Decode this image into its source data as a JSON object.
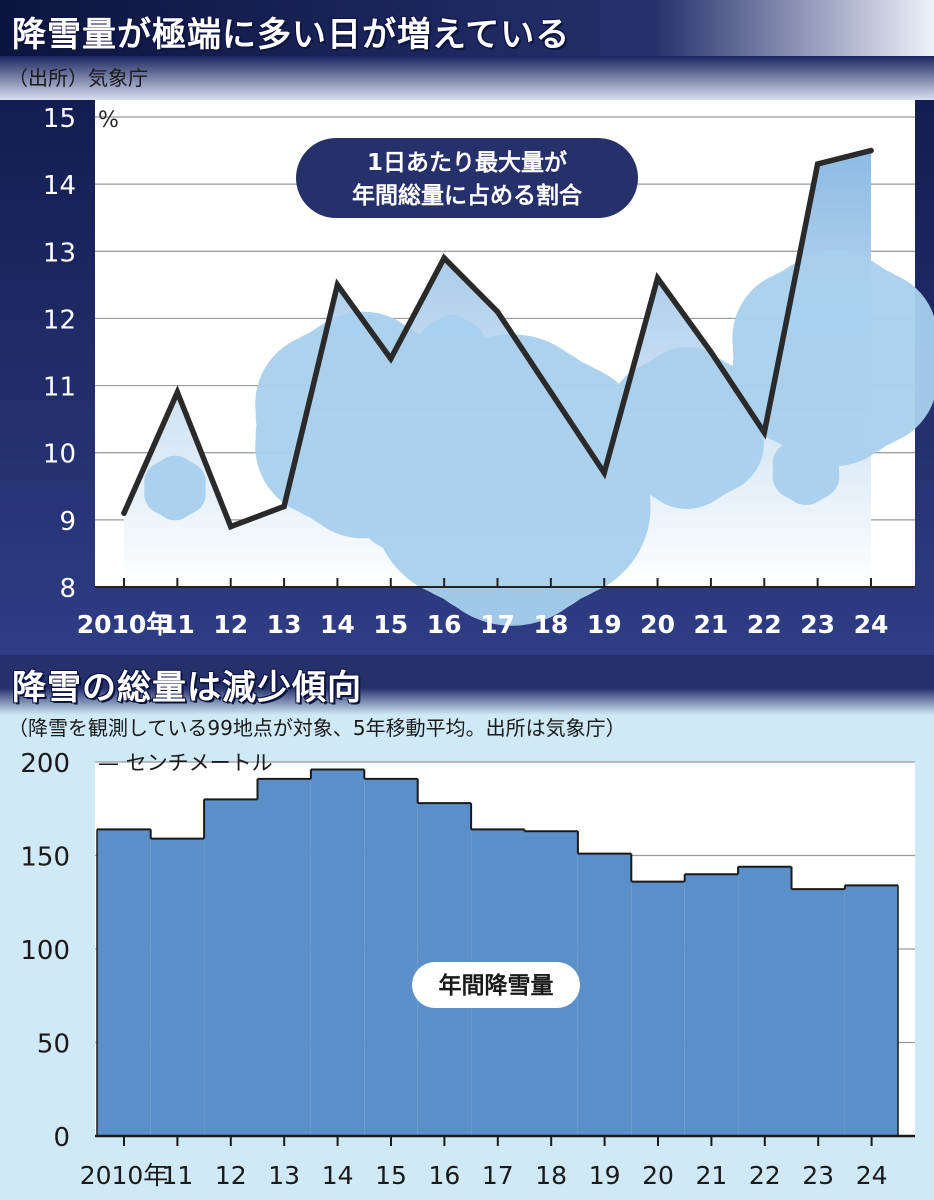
{
  "colors": {
    "navy": "#26306b",
    "light_blue": "#cfe9f7",
    "bar_fill": "#5b8fc9",
    "line": "#2a2a2a",
    "area_top": "#8dbbe4",
    "snow": "#a9d0ee"
  },
  "top": {
    "title": "降雪量が極端に多い日が増えている",
    "source": "（出所）気象庁",
    "label_lines": [
      "1日あたり最大量が",
      "年間総量に占める割合"
    ]
  },
  "bottom": {
    "title": "降雪の総量は減少傾向",
    "source": "（降雪を観測している99地点が対象、5年移動平均。出所は気象庁）",
    "label": "年間降雪量"
  },
  "chart_data": [
    {
      "type": "area",
      "title": "降雪量が極端に多い日が増えている",
      "series_label": "1日あたり最大量が年間総量に占める割合",
      "unit": "%",
      "categories": [
        "2010年",
        "11",
        "12",
        "13",
        "14",
        "15",
        "16",
        "17",
        "18",
        "19",
        "20",
        "21",
        "22",
        "23",
        "24"
      ],
      "values": [
        9.1,
        10.9,
        8.9,
        9.2,
        12.5,
        11.4,
        12.9,
        12.1,
        10.9,
        9.7,
        12.6,
        11.5,
        10.3,
        14.3,
        14.5
      ],
      "yticks": [
        8,
        9,
        10,
        11,
        12,
        13,
        14,
        15
      ],
      "ylim": [
        8,
        15
      ],
      "grid": true
    },
    {
      "type": "bar",
      "title": "降雪の総量は減少傾向",
      "series_label": "年間降雪量",
      "unit": "センチメートル",
      "categories": [
        "2010年",
        "11",
        "12",
        "13",
        "14",
        "15",
        "16",
        "17",
        "18",
        "19",
        "20",
        "21",
        "22",
        "23",
        "24"
      ],
      "values": [
        164,
        159,
        180,
        191,
        196,
        191,
        178,
        164,
        163,
        151,
        136,
        140,
        144,
        132,
        134
      ],
      "yticks": [
        0,
        50,
        100,
        150,
        200
      ],
      "ylim": [
        0,
        200
      ],
      "grid": true
    }
  ]
}
